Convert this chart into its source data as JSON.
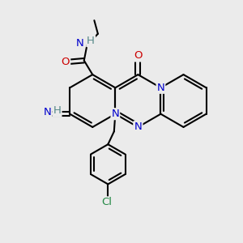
{
  "bg_color": "#ebebeb",
  "bond_color": "#000000",
  "bond_width": 1.5,
  "N_color": "#0000cc",
  "O_color": "#cc0000",
  "Cl_color": "#228844",
  "H_color": "#558888",
  "figsize": [
    3.0,
    3.0
  ],
  "dpi": 100,
  "xlim": [
    0,
    10
  ],
  "ylim": [
    0,
    10
  ]
}
